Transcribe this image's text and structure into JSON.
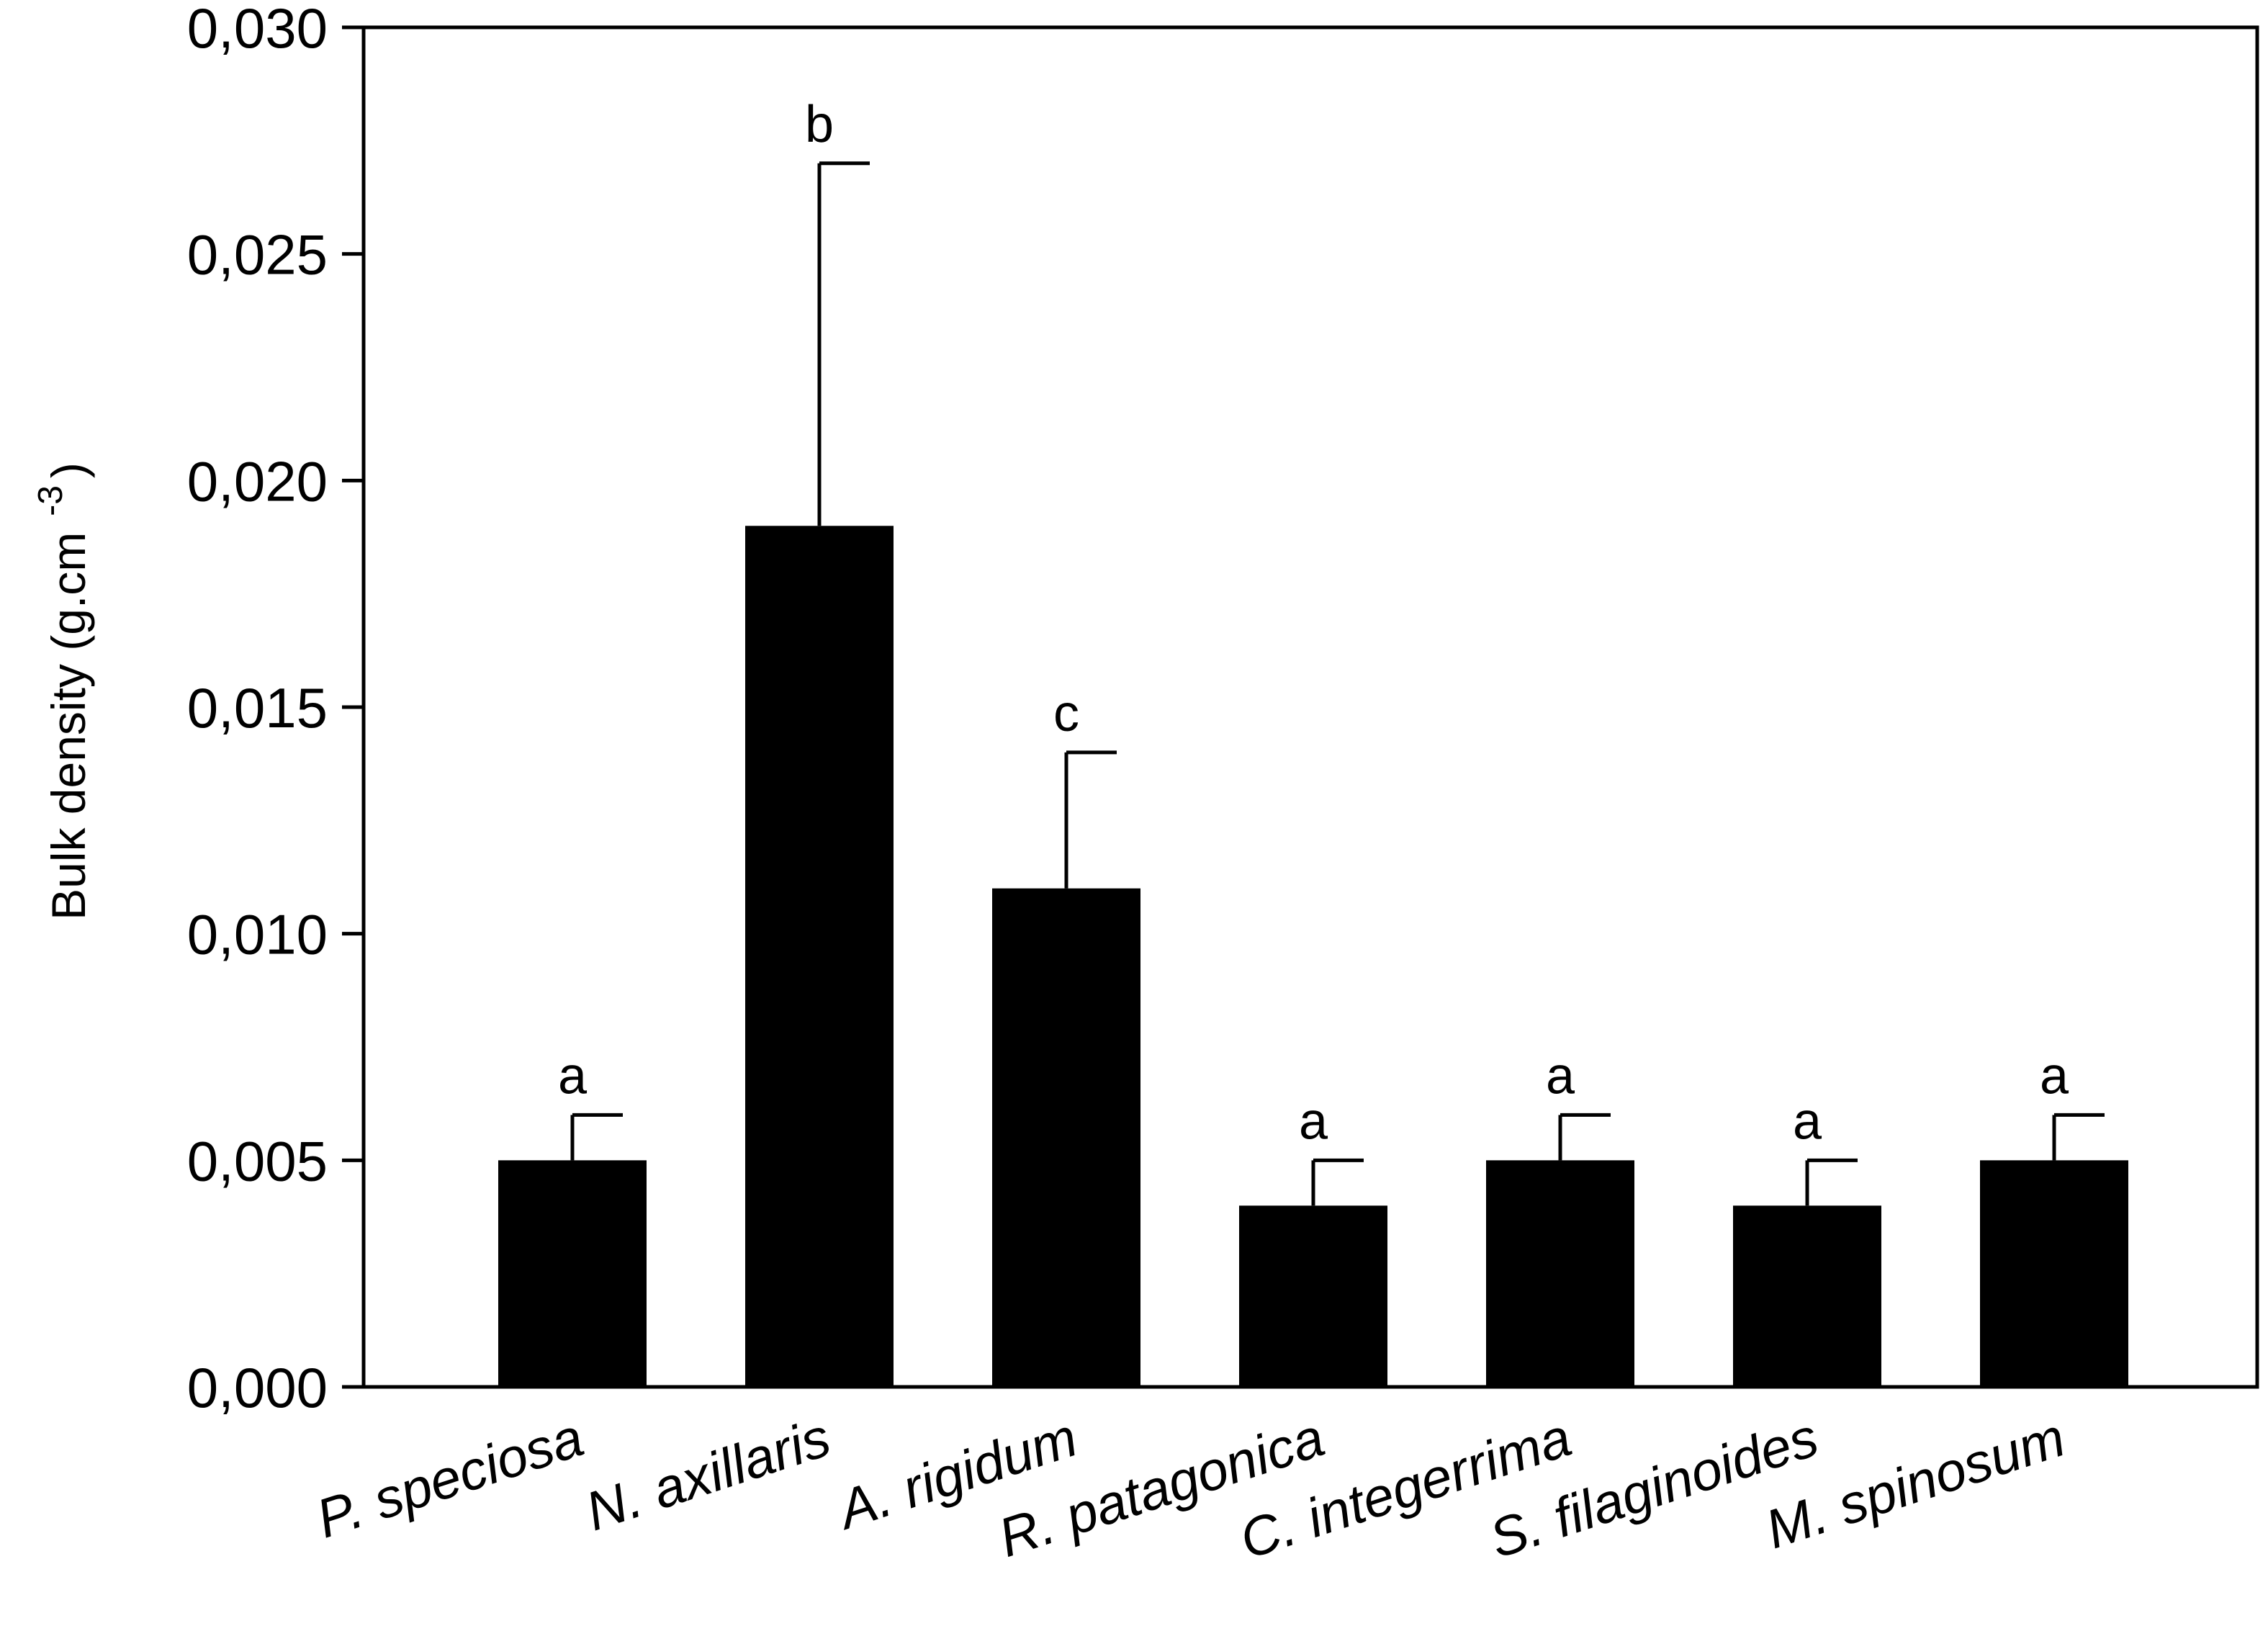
{
  "chart_data": {
    "type": "bar",
    "categories": [
      "P. speciosa",
      "N. axillaris",
      "A. rigidum",
      "R. patagonica",
      "C. integerrima",
      "S. filaginoides",
      "M. spinosum"
    ],
    "values": [
      0.005,
      0.019,
      0.011,
      0.004,
      0.005,
      0.004,
      0.005
    ],
    "error_upper": [
      0.006,
      0.027,
      0.014,
      0.005,
      0.006,
      0.005,
      0.006
    ],
    "significance": [
      "a",
      "b",
      "c",
      "a",
      "a",
      "a",
      "a"
    ],
    "ylabel_main": "Bulk density (g.cm",
    "ylabel_sup": "-3",
    "ylabel_close": ")",
    "ylim": [
      0,
      0.03
    ],
    "yticks": [
      0,
      0.005,
      0.01,
      0.015,
      0.02,
      0.025,
      0.03
    ],
    "ytick_labels": [
      "0,000",
      "0,005",
      "0,010",
      "0,015",
      "0,020",
      "0,025",
      "0,030"
    ],
    "bar_color": "#000000",
    "grid": false,
    "legend": "none"
  }
}
